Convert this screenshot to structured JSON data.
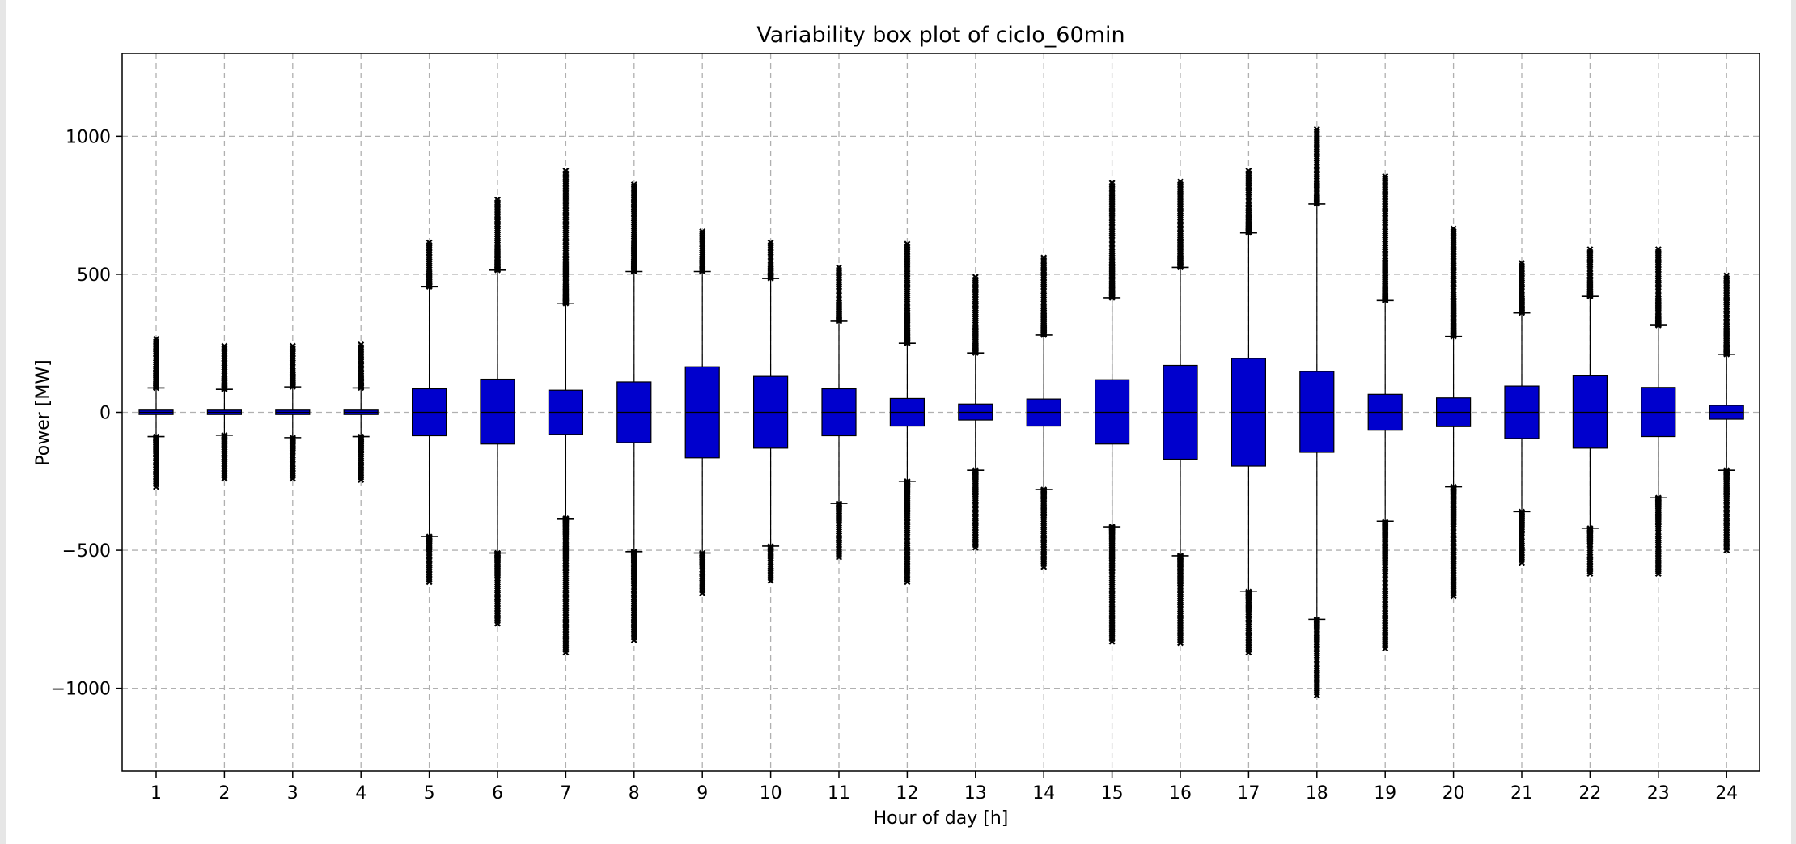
{
  "chart_data": {
    "type": "box",
    "title": "Variability box plot of ciclo_60min",
    "xlabel": "Hour of day [h]",
    "ylabel": "Power [MW]",
    "ylim": [
      -1300,
      1300
    ],
    "yticks": [
      -1000,
      -500,
      0,
      500,
      1000
    ],
    "yticklabels": [
      "−1000",
      "−500",
      "0",
      "500",
      "1000"
    ],
    "grid": true,
    "box_color": "#0000cd",
    "categories": [
      "1",
      "2",
      "3",
      "4",
      "5",
      "6",
      "7",
      "8",
      "9",
      "10",
      "11",
      "12",
      "13",
      "14",
      "15",
      "16",
      "17",
      "18",
      "19",
      "20",
      "21",
      "22",
      "23",
      "24"
    ],
    "boxes": [
      {
        "hour": "1",
        "q1": -8,
        "median": 0,
        "q3": 8,
        "whisker_low": -88,
        "whisker_high": 88,
        "flier_low_min": -270,
        "flier_high_max": 265
      },
      {
        "hour": "2",
        "q1": -8,
        "median": 0,
        "q3": 8,
        "whisker_low": -83,
        "whisker_high": 83,
        "flier_low_min": -240,
        "flier_high_max": 240
      },
      {
        "hour": "3",
        "q1": -8,
        "median": 0,
        "q3": 8,
        "whisker_low": -92,
        "whisker_high": 92,
        "flier_low_min": -240,
        "flier_high_max": 240
      },
      {
        "hour": "4",
        "q1": -8,
        "median": 0,
        "q3": 8,
        "whisker_low": -88,
        "whisker_high": 88,
        "flier_low_min": -245,
        "flier_high_max": 245
      },
      {
        "hour": "5",
        "q1": -85,
        "median": 0,
        "q3": 85,
        "whisker_low": -450,
        "whisker_high": 455,
        "flier_low_min": -615,
        "flier_high_max": 615
      },
      {
        "hour": "6",
        "q1": -115,
        "median": 0,
        "q3": 120,
        "whisker_low": -510,
        "whisker_high": 515,
        "flier_low_min": -765,
        "flier_high_max": 770
      },
      {
        "hour": "7",
        "q1": -80,
        "median": 0,
        "q3": 80,
        "whisker_low": -385,
        "whisker_high": 395,
        "flier_low_min": -870,
        "flier_high_max": 875
      },
      {
        "hour": "8",
        "q1": -110,
        "median": 0,
        "q3": 110,
        "whisker_low": -505,
        "whisker_high": 510,
        "flier_low_min": -825,
        "flier_high_max": 825
      },
      {
        "hour": "9",
        "q1": -165,
        "median": 0,
        "q3": 165,
        "whisker_low": -510,
        "whisker_high": 510,
        "flier_low_min": -655,
        "flier_high_max": 655
      },
      {
        "hour": "10",
        "q1": -130,
        "median": 0,
        "q3": 130,
        "whisker_low": -485,
        "whisker_high": 485,
        "flier_low_min": -610,
        "flier_high_max": 615
      },
      {
        "hour": "11",
        "q1": -85,
        "median": 0,
        "q3": 85,
        "whisker_low": -330,
        "whisker_high": 330,
        "flier_low_min": -525,
        "flier_high_max": 525
      },
      {
        "hour": "12",
        "q1": -50,
        "median": 0,
        "q3": 50,
        "whisker_low": -250,
        "whisker_high": 250,
        "flier_low_min": -615,
        "flier_high_max": 610
      },
      {
        "hour": "13",
        "q1": -28,
        "median": 0,
        "q3": 30,
        "whisker_low": -210,
        "whisker_high": 215,
        "flier_low_min": -490,
        "flier_high_max": 490
      },
      {
        "hour": "14",
        "q1": -50,
        "median": 0,
        "q3": 48,
        "whisker_low": -280,
        "whisker_high": 280,
        "flier_low_min": -560,
        "flier_high_max": 560
      },
      {
        "hour": "15",
        "q1": -115,
        "median": 0,
        "q3": 118,
        "whisker_low": -415,
        "whisker_high": 415,
        "flier_low_min": -830,
        "flier_high_max": 830
      },
      {
        "hour": "16",
        "q1": -170,
        "median": 0,
        "q3": 170,
        "whisker_low": -520,
        "whisker_high": 525,
        "flier_low_min": -835,
        "flier_high_max": 835
      },
      {
        "hour": "17",
        "q1": -195,
        "median": 0,
        "q3": 195,
        "whisker_low": -650,
        "whisker_high": 650,
        "flier_low_min": -870,
        "flier_high_max": 875
      },
      {
        "hour": "18",
        "q1": -145,
        "median": 0,
        "q3": 148,
        "whisker_low": -750,
        "whisker_high": 755,
        "flier_low_min": -1025,
        "flier_high_max": 1025
      },
      {
        "hour": "19",
        "q1": -65,
        "median": 0,
        "q3": 65,
        "whisker_low": -395,
        "whisker_high": 405,
        "flier_low_min": -855,
        "flier_high_max": 855
      },
      {
        "hour": "20",
        "q1": -52,
        "median": 0,
        "q3": 52,
        "whisker_low": -270,
        "whisker_high": 275,
        "flier_low_min": -665,
        "flier_high_max": 665
      },
      {
        "hour": "21",
        "q1": -95,
        "median": 0,
        "q3": 95,
        "whisker_low": -360,
        "whisker_high": 360,
        "flier_low_min": -545,
        "flier_high_max": 540
      },
      {
        "hour": "22",
        "q1": -130,
        "median": 0,
        "q3": 132,
        "whisker_low": -420,
        "whisker_high": 420,
        "flier_low_min": -585,
        "flier_high_max": 590
      },
      {
        "hour": "23",
        "q1": -88,
        "median": 0,
        "q3": 90,
        "whisker_low": -310,
        "whisker_high": 315,
        "flier_low_min": -585,
        "flier_high_max": 590
      },
      {
        "hour": "24",
        "q1": -25,
        "median": 0,
        "q3": 25,
        "whisker_low": -210,
        "whisker_high": 210,
        "flier_low_min": -500,
        "flier_high_max": 495
      }
    ]
  }
}
